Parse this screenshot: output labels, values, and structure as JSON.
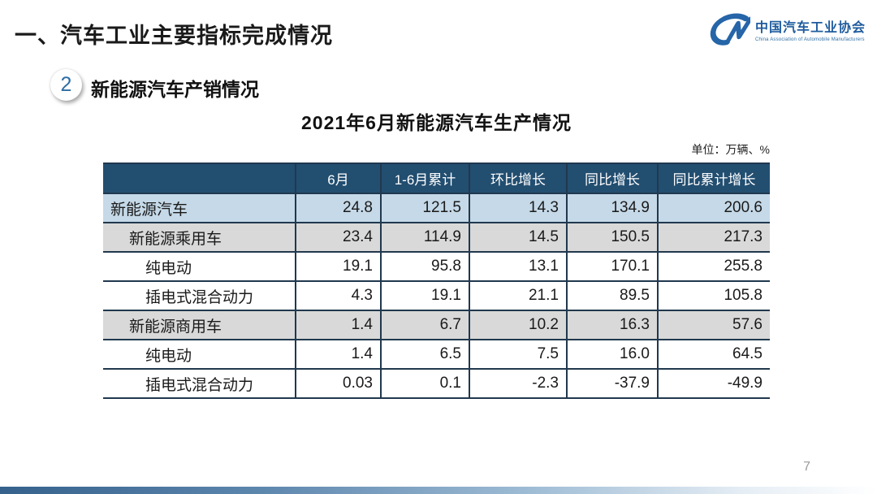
{
  "header": {
    "title": "一、汽车工业主要指标完成情况"
  },
  "logo": {
    "mark": "CM-logo",
    "org_cn": "中国汽车工业协会",
    "org_en": "China Association of Automobile Manufacturers"
  },
  "section": {
    "number": "2",
    "title": "新能源汽车产销情况"
  },
  "table_title": "2021年6月新能源汽车生产情况",
  "unit_note": "单位：万辆、%",
  "chart_data": {
    "type": "table",
    "title": "2021年6月新能源汽车生产情况",
    "unit": "万辆、%",
    "columns": [
      "",
      "6月",
      "1-6月累计",
      "环比增长",
      "同比增长",
      "同比累计增长"
    ],
    "rows": [
      {
        "label": "新能源汽车",
        "indent": 0,
        "style": "blue",
        "values": [
          "24.8",
          "121.5",
          "14.3",
          "134.9",
          "200.6"
        ]
      },
      {
        "label": "新能源乘用车",
        "indent": 1,
        "style": "gray",
        "values": [
          "23.4",
          "114.9",
          "14.5",
          "150.5",
          "217.3"
        ]
      },
      {
        "label": "纯电动",
        "indent": 2,
        "style": "white",
        "values": [
          "19.1",
          "95.8",
          "13.1",
          "170.1",
          "255.8"
        ]
      },
      {
        "label": "插电式混合动力",
        "indent": 2,
        "style": "white",
        "values": [
          "4.3",
          "19.1",
          "21.1",
          "89.5",
          "105.8"
        ]
      },
      {
        "label": "新能源商用车",
        "indent": 1,
        "style": "gray",
        "values": [
          "1.4",
          "6.7",
          "10.2",
          "16.3",
          "57.6"
        ]
      },
      {
        "label": "纯电动",
        "indent": 2,
        "style": "white",
        "values": [
          "1.4",
          "6.5",
          "7.5",
          "16.0",
          "64.5"
        ]
      },
      {
        "label": "插电式混合动力",
        "indent": 2,
        "style": "white",
        "values": [
          "0.03",
          "0.1",
          "-2.3",
          "-37.9",
          "-49.9"
        ]
      }
    ]
  },
  "footer": {
    "page_number": "7"
  },
  "colors": {
    "table_header_bg": "#224e70",
    "row_blue": "#c5d9e8",
    "row_gray": "#d9d9d9",
    "border": "#21384e",
    "accent_blue": "#2e6da4",
    "logo_blue": "#1f5c9e"
  }
}
